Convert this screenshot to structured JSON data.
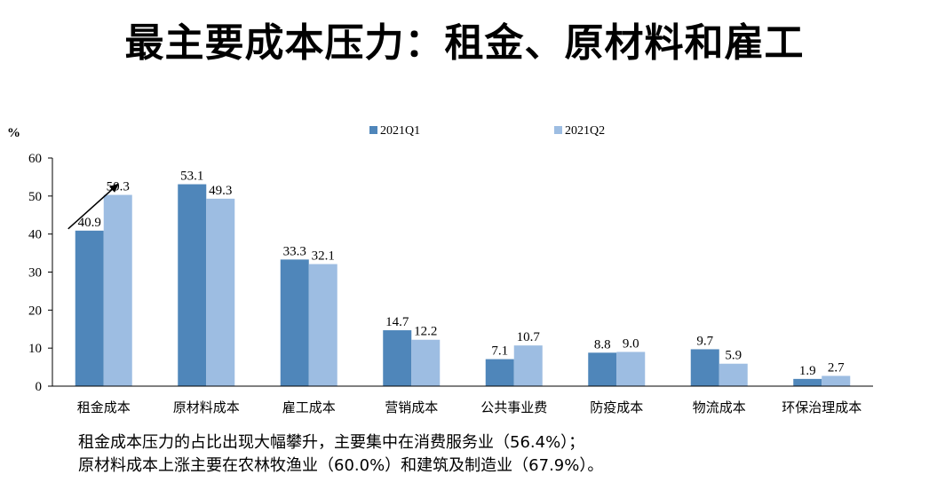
{
  "page_title": "最主要成本压力：租金、原材料和雇工",
  "colors": {
    "q1": "#4f86ba",
    "q2": "#9dbde2",
    "axis": "#000000",
    "arrow": "#000000"
  },
  "chart_data": {
    "type": "bar",
    "ylabel": "%",
    "ylim": [
      0,
      60
    ],
    "yticks": [
      0,
      10,
      20,
      30,
      40,
      50,
      60
    ],
    "grid": false,
    "legend_position": "top",
    "categories": [
      "租金成本",
      "原材料成本",
      "雇工成本",
      "营销成本",
      "公共事业费",
      "防疫成本",
      "物流成本",
      "环保治理成本"
    ],
    "series": [
      {
        "name": "2021Q1",
        "values": [
          40.9,
          53.1,
          33.3,
          14.7,
          7.1,
          8.8,
          9.7,
          1.9
        ]
      },
      {
        "name": "2021Q2",
        "values": [
          50.3,
          49.3,
          32.1,
          12.2,
          10.7,
          9.0,
          5.9,
          2.7
        ]
      }
    ],
    "data_labels": [
      [
        "40.9",
        "53.1",
        "33.3",
        "14.7",
        "7.1",
        "8.8",
        "9.7",
        "1.9"
      ],
      [
        "50.3",
        "49.3",
        "32.1",
        "12.2",
        "10.7",
        "9.0",
        "5.9",
        "2.7"
      ]
    ],
    "annotations": [
      {
        "type": "arrow",
        "category": "租金成本",
        "from_value": 40.9,
        "to_value": 50.3
      }
    ]
  },
  "caption": {
    "line1": "租金成本压力的占比出现大幅攀升，主要集中在消费服务业（56.4%）；",
    "line2": "原材料成本上涨主要在农林牧渔业（60.0%）和建筑及制造业（67.9%）。"
  }
}
